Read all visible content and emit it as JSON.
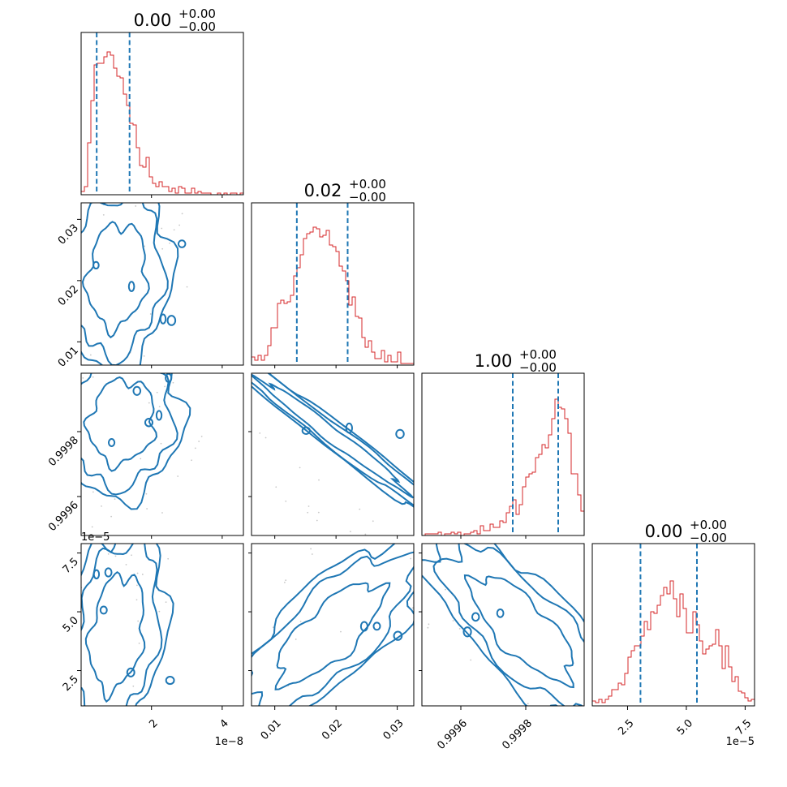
{
  "chart_data": {
    "type": "corner",
    "colors": {
      "hist": "#d62728",
      "quantile": "#1f77b4",
      "contour": "#1f77b4",
      "scatter": "#c8c8c8"
    },
    "params": [
      {
        "title": "0.00",
        "plus": "+0.00",
        "minus": "−0.00",
        "range": [
          1e-10,
          4.6e-08
        ],
        "quantiles": [
          4.5e-09,
          1.38e-08
        ],
        "offset": "1e−8",
        "ticks": [
          {
            "v": 2e-08,
            "label": "2"
          },
          {
            "v": 4e-08,
            "label": "4"
          }
        ]
      },
      {
        "title": "0.02",
        "plus": "+0.00",
        "minus": "−0.00",
        "range": [
          0.0062,
          0.0327
        ],
        "quantiles": [
          0.0136,
          0.0219
        ],
        "ticks": [
          {
            "v": 0.01,
            "label": "0.01"
          },
          {
            "v": 0.02,
            "label": "0.02"
          },
          {
            "v": 0.03,
            "label": "0.03"
          }
        ]
      },
      {
        "title": "1.00",
        "plus": "+0.00",
        "minus": "−0.00",
        "range": [
          0.99948,
          0.99998
        ],
        "quantiles": [
          0.99976,
          0.9999
        ],
        "ticks": [
          {
            "v": 0.9996,
            "label": "0.9996"
          },
          {
            "v": 0.9998,
            "label": "0.9998"
          }
        ]
      },
      {
        "title": "0.00",
        "plus": "+0.00",
        "minus": "−0.00",
        "range": [
          1e-05,
          7.9e-05
        ],
        "quantiles": [
          3.05e-05,
          5.45e-05
        ],
        "offset": "1e−5",
        "ticks": [
          {
            "v": 2.5e-05,
            "label": "2.5"
          },
          {
            "v": 5e-05,
            "label": "5.0"
          },
          {
            "v": 7.5e-05,
            "label": "7.5"
          }
        ]
      }
    ],
    "histograms": [
      [
        0.02,
        0.05,
        0.32,
        0.58,
        0.8,
        0.81,
        0.81,
        0.85,
        0.88,
        0.86,
        0.78,
        0.73,
        0.72,
        0.62,
        0.55,
        0.44,
        0.43,
        0.29,
        0.18,
        0.17,
        0.23,
        0.11,
        0.07,
        0.05,
        0.08,
        0.05,
        0.05,
        0.02,
        0.04,
        0.01,
        0.05,
        0.04,
        0.01,
        0.01,
        0.04,
        0.01,
        0.02,
        0.01,
        0.01,
        0.01,
        0.0,
        0.0,
        0.01,
        0.0,
        0.01,
        0.0,
        0.01,
        0.01,
        0.0,
        0.01
      ],
      [
        0.05,
        0.03,
        0.06,
        0.03,
        0.06,
        0.12,
        0.23,
        0.23,
        0.38,
        0.4,
        0.38,
        0.39,
        0.43,
        0.55,
        0.6,
        0.68,
        0.78,
        0.81,
        0.82,
        0.85,
        0.84,
        0.79,
        0.8,
        0.83,
        0.74,
        0.73,
        0.7,
        0.61,
        0.58,
        0.52,
        0.37,
        0.42,
        0.3,
        0.29,
        0.17,
        0.11,
        0.15,
        0.08,
        0.04,
        0.04,
        0.09,
        0.02,
        0.06,
        0.02,
        0.02,
        0.08,
        0.01,
        0.01,
        0.01,
        0.01
      ],
      [
        0.0,
        0.01,
        0.01,
        0.01,
        0.01,
        0.02,
        0.0,
        0.01,
        0.01,
        0.02,
        0.01,
        0.02,
        0.0,
        0.01,
        0.01,
        0.02,
        0.03,
        0.01,
        0.06,
        0.03,
        0.03,
        0.07,
        0.05,
        0.05,
        0.09,
        0.08,
        0.14,
        0.18,
        0.22,
        0.13,
        0.19,
        0.3,
        0.36,
        0.38,
        0.39,
        0.48,
        0.5,
        0.56,
        0.54,
        0.62,
        0.72,
        0.84,
        0.79,
        0.78,
        0.72,
        0.63,
        0.38,
        0.38,
        0.25,
        0.15
      ],
      [
        0.03,
        0.02,
        0.04,
        0.02,
        0.04,
        0.06,
        0.1,
        0.1,
        0.14,
        0.13,
        0.2,
        0.3,
        0.34,
        0.37,
        0.37,
        0.43,
        0.52,
        0.47,
        0.58,
        0.57,
        0.62,
        0.68,
        0.73,
        0.69,
        0.77,
        0.66,
        0.55,
        0.69,
        0.6,
        0.45,
        0.45,
        0.58,
        0.5,
        0.4,
        0.32,
        0.35,
        0.37,
        0.38,
        0.47,
        0.37,
        0.23,
        0.37,
        0.24,
        0.15,
        0.18,
        0.09,
        0.08,
        0.05,
        0.03,
        0.04
      ]
    ]
  }
}
